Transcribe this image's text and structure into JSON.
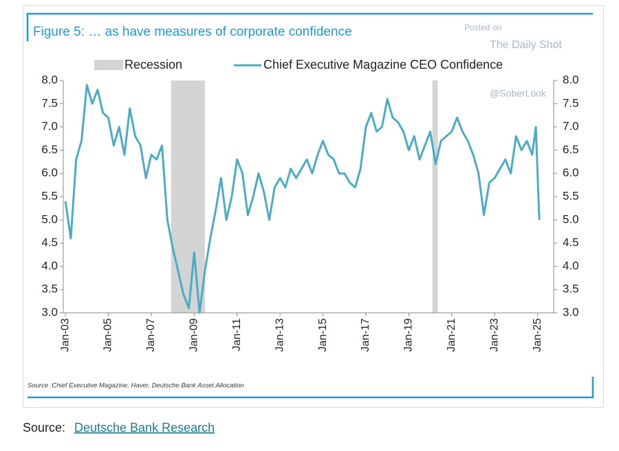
{
  "chart_data": {
    "type": "line",
    "title": "Figure 5: … as have measures of corporate confidence",
    "source_note": "Source :Chief Executive Magazine, Haver, Deutsche Bank Asset Allocation",
    "recession_name": "Recession",
    "recession_color": "#d4d4d4",
    "recessions": [
      [
        2007.92,
        2009.5
      ],
      [
        2020.1,
        2020.35
      ]
    ],
    "series": [
      {
        "name": "Chief Executive Magazine CEO Confidence",
        "color": "#4bacc6",
        "x": [
          2003.0,
          2003.25,
          2003.5,
          2003.75,
          2004.0,
          2004.25,
          2004.5,
          2004.75,
          2005.0,
          2005.25,
          2005.5,
          2005.75,
          2006.0,
          2006.25,
          2006.5,
          2006.75,
          2007.0,
          2007.25,
          2007.5,
          2007.75,
          2008.0,
          2008.25,
          2008.5,
          2008.75,
          2009.0,
          2009.25,
          2009.5,
          2009.75,
          2010.0,
          2010.25,
          2010.5,
          2010.75,
          2011.0,
          2011.25,
          2011.5,
          2011.75,
          2012.0,
          2012.25,
          2012.5,
          2012.75,
          2013.0,
          2013.25,
          2013.5,
          2013.75,
          2014.0,
          2014.25,
          2014.5,
          2014.75,
          2015.0,
          2015.25,
          2015.5,
          2015.75,
          2016.0,
          2016.25,
          2016.5,
          2016.75,
          2017.0,
          2017.25,
          2017.5,
          2017.75,
          2018.0,
          2018.25,
          2018.5,
          2018.75,
          2019.0,
          2019.25,
          2019.5,
          2019.75,
          2020.0,
          2020.25,
          2020.5,
          2020.75,
          2021.0,
          2021.25,
          2021.5,
          2021.75,
          2022.0,
          2022.25,
          2022.5,
          2022.75,
          2023.0,
          2023.25,
          2023.5,
          2023.75,
          2024.0,
          2024.25,
          2024.5,
          2024.75,
          2024.92,
          2025.08
        ],
        "values": [
          5.4,
          4.6,
          6.3,
          6.7,
          7.9,
          7.5,
          7.8,
          7.3,
          7.2,
          6.6,
          7.0,
          6.4,
          7.4,
          6.8,
          6.6,
          5.9,
          6.4,
          6.3,
          6.6,
          5.0,
          4.4,
          3.9,
          3.4,
          3.1,
          4.3,
          3.0,
          3.9,
          4.6,
          5.2,
          5.9,
          5.0,
          5.5,
          6.3,
          6.0,
          5.1,
          5.5,
          6.0,
          5.6,
          5.0,
          5.7,
          5.9,
          5.7,
          6.1,
          5.9,
          6.1,
          6.3,
          6.0,
          6.4,
          6.7,
          6.4,
          6.3,
          6.0,
          6.0,
          5.8,
          5.7,
          6.1,
          7.0,
          7.3,
          6.9,
          7.0,
          7.6,
          7.2,
          7.1,
          6.9,
          6.5,
          6.8,
          6.3,
          6.6,
          6.9,
          6.2,
          6.7,
          6.8,
          6.9,
          7.2,
          6.9,
          6.7,
          6.4,
          6.0,
          5.1,
          5.8,
          5.9,
          6.1,
          6.3,
          6.0,
          6.8,
          6.5,
          6.7,
          6.4,
          7.0,
          5.0
        ]
      }
    ],
    "xlim": [
      2002.9,
      2025.75
    ],
    "xticks": [
      {
        "value": 2003,
        "label": "Jan-03"
      },
      {
        "value": 2005,
        "label": "Jan-05"
      },
      {
        "value": 2007,
        "label": "Jan-07"
      },
      {
        "value": 2009,
        "label": "Jan-09"
      },
      {
        "value": 2011,
        "label": "Jan-11"
      },
      {
        "value": 2013,
        "label": "Jan-13"
      },
      {
        "value": 2015,
        "label": "Jan-15"
      },
      {
        "value": 2017,
        "label": "Jan-17"
      },
      {
        "value": 2019,
        "label": "Jan-19"
      },
      {
        "value": 2021,
        "label": "Jan-21"
      },
      {
        "value": 2023,
        "label": "Jan-23"
      },
      {
        "value": 2025,
        "label": "Jan-25"
      }
    ],
    "ylim": [
      3,
      8
    ],
    "yticks": [
      {
        "value": 3,
        "label": "3.0"
      },
      {
        "value": 3.5,
        "label": "3.5"
      },
      {
        "value": 4,
        "label": "4.0"
      },
      {
        "value": 4.5,
        "label": "4.5"
      },
      {
        "value": 5,
        "label": "5.0"
      },
      {
        "value": 5.5,
        "label": "5.5"
      },
      {
        "value": 6,
        "label": "6.0"
      },
      {
        "value": 6.5,
        "label": "6.5"
      },
      {
        "value": 7,
        "label": "7.0"
      },
      {
        "value": 7.5,
        "label": "7.5"
      },
      {
        "value": 8,
        "label": "8.0"
      }
    ]
  },
  "watermark": {
    "posted": "Posted on",
    "site": "The Daily Shot",
    "handle": "@SoberLook"
  },
  "footer": {
    "prefix": "Source:",
    "link": "Deutsche Bank Research"
  }
}
